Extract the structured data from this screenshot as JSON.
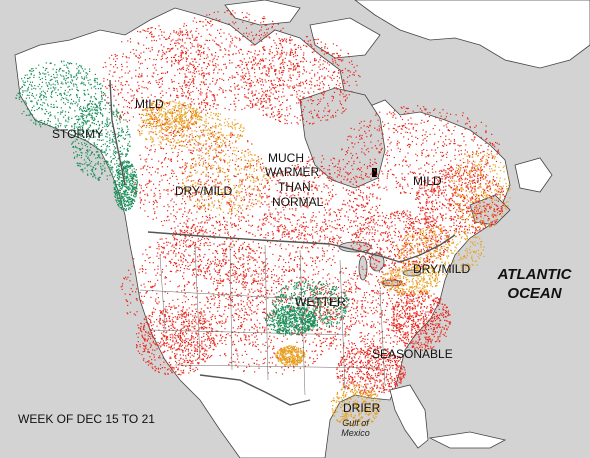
{
  "map": {
    "week_label": "WEEK OF DEC 15 TO 21",
    "ocean_label_line1": "ATLANTIC",
    "ocean_label_line2": "OCEAN",
    "gulf_label_line1": "Gulf of",
    "gulf_label_line2": "Mexico",
    "regions": [
      {
        "label": "STORMY"
      },
      {
        "label": "MILD"
      },
      {
        "label": "DRY/MILD"
      },
      {
        "label": "MUCH"
      },
      {
        "label": "WARMER"
      },
      {
        "label": "THAN"
      },
      {
        "label": "NORMAL"
      },
      {
        "label": "MILD"
      },
      {
        "label": "DRY/MILD"
      },
      {
        "label": "WETTER"
      },
      {
        "label": "SEASONABLE"
      },
      {
        "label": "DRIER"
      }
    ],
    "colors": {
      "background": "#d3d3d3",
      "land": "#ffffff",
      "warmer": "#e8261c",
      "dry_mild": "#e8a020",
      "wet": "#1a8f5a",
      "boundary": "#555555"
    }
  }
}
